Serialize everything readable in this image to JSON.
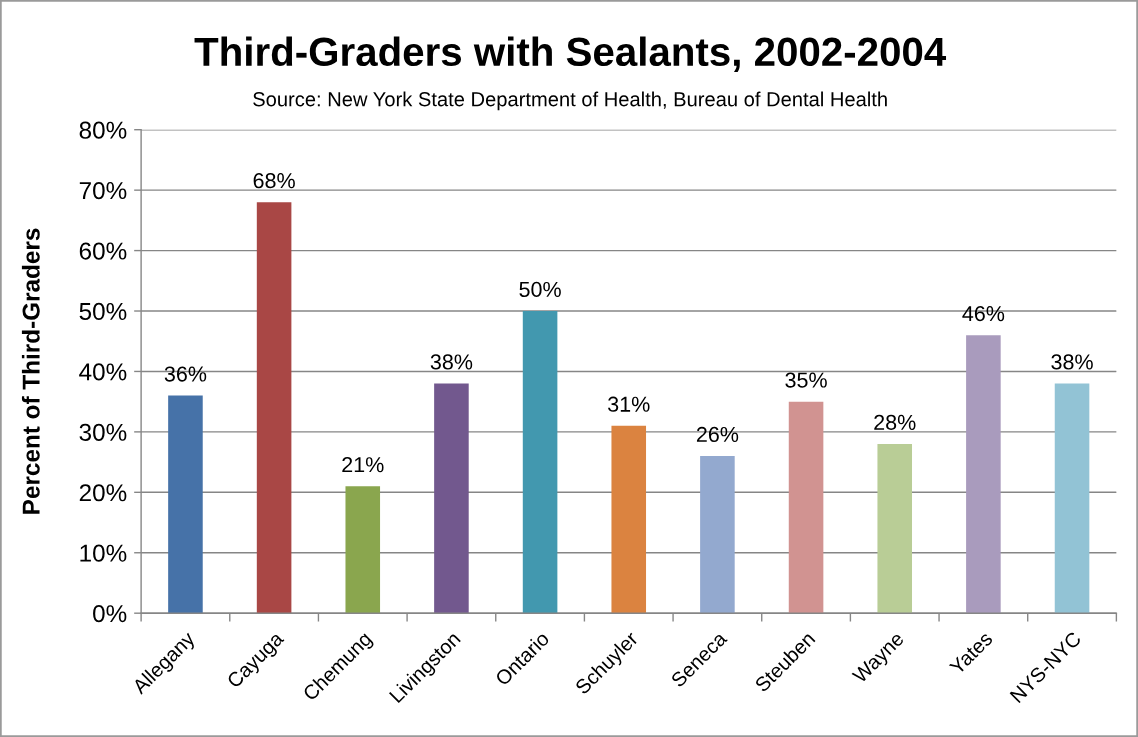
{
  "chart_data": {
    "type": "bar",
    "title": "Third-Graders with Sealants, 2002-2004",
    "subtitle": "Source: New York State Department of Health, Bureau of Dental Health",
    "ylabel": "Percent of Third-Graders",
    "categories": [
      "Allegany",
      "Cayuga",
      "Chemung",
      "Livingston",
      "Ontario",
      "Schuyler",
      "Seneca",
      "Steuben",
      "Wayne",
      "Yates",
      "NYS-NYC"
    ],
    "values": [
      36,
      68,
      21,
      38,
      50,
      31,
      26,
      35,
      28,
      46,
      38
    ],
    "value_labels": [
      "36%",
      "68%",
      "21%",
      "38%",
      "50%",
      "31%",
      "26%",
      "35%",
      "28%",
      "46%",
      "38%"
    ],
    "colors": [
      "#4672a8",
      "#a94745",
      "#8aa64e",
      "#72588e",
      "#4298af",
      "#db8340",
      "#93a9cf",
      "#d19391",
      "#b9cd96",
      "#a99bbd",
      "#92c3d5"
    ],
    "ylim": [
      0,
      80
    ],
    "yticks": [
      {
        "value": 0,
        "label": "0%"
      },
      {
        "value": 10,
        "label": "10%"
      },
      {
        "value": 20,
        "label": "20%"
      },
      {
        "value": 30,
        "label": "30%"
      },
      {
        "value": 40,
        "label": "40%"
      },
      {
        "value": 50,
        "label": "50%"
      },
      {
        "value": 60,
        "label": "60%"
      },
      {
        "value": 70,
        "label": "70%"
      },
      {
        "value": 80,
        "label": "80%"
      }
    ],
    "grid": "y",
    "legend": false
  }
}
